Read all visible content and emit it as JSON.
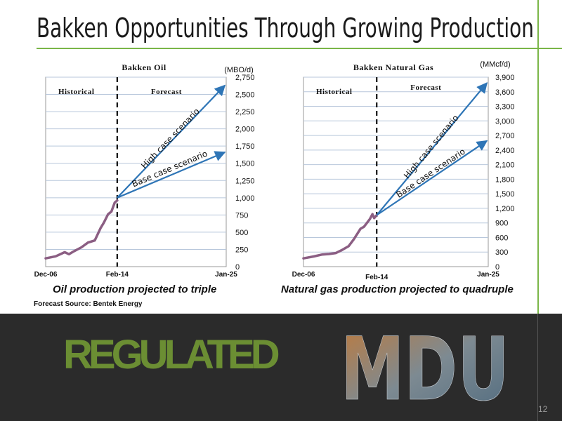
{
  "slide": {
    "title": "Bakken Opportunities Through Growing Production",
    "source": "Forecast Source: Bentek Energy",
    "page_number": "12",
    "segment_label": "REGULATED",
    "logo_text": "MDU",
    "accent_color": "#7ab648",
    "line_color": "#8b5e83",
    "arrow_color": "#2e75b6"
  },
  "chart_data": [
    {
      "type": "line",
      "title": "Bakken Oil",
      "unit": "(MBO/d)",
      "caption": "Oil production projected to triple",
      "region_labels": [
        "Historical",
        "Forecast"
      ],
      "x_ticks": [
        "Dec-06",
        "Feb-14",
        "Jan-25"
      ],
      "x_range": [
        "Dec-06",
        "Jan-25"
      ],
      "divider_x": "Feb-14",
      "ylim": [
        0,
        2750
      ],
      "y_ticks": [
        0,
        250,
        500,
        750,
        1000,
        1250,
        1500,
        1750,
        2000,
        2250,
        2500,
        2750
      ],
      "grid": true,
      "series": [
        {
          "values": [
            [
              "Dec-06",
              120
            ],
            [
              "Dec-07",
              150
            ],
            [
              "Nov-08",
              210
            ],
            [
              "Apr-09",
              180
            ],
            [
              "Nov-09",
              230
            ],
            [
              "Jul-10",
              280
            ],
            [
              "Mar-11",
              350
            ],
            [
              "Nov-11",
              380
            ],
            [
              "Jun-12",
              560
            ],
            [
              "Oct-12",
              640
            ],
            [
              "Mar-13",
              760
            ],
            [
              "Jul-13",
              800
            ],
            [
              "Nov-13",
              930
            ],
            [
              "Feb-14",
              960
            ]
          ]
        }
      ],
      "scenarios": [
        {
          "name": "High case scenario",
          "from": [
            "Feb-14",
            1000
          ],
          "to": [
            "Jan-25",
            2630
          ]
        },
        {
          "name": "Base case scenario",
          "from": [
            "Feb-14",
            1000
          ],
          "to": [
            "Jan-25",
            1660
          ]
        }
      ]
    },
    {
      "type": "line",
      "title": "Bakken Natural Gas",
      "unit": "(MMcf/d)",
      "caption": "Natural gas production projected to quadruple",
      "region_labels": [
        "Historical",
        "Forecast"
      ],
      "x_ticks": [
        "Dec-06",
        "Feb-14",
        "Jan-25"
      ],
      "x_range": [
        "Dec-06",
        "Jan-25"
      ],
      "divider_x": "Feb-14",
      "ylim": [
        0,
        3900
      ],
      "y_ticks": [
        0,
        300,
        600,
        900,
        1200,
        1500,
        1800,
        2100,
        2400,
        2700,
        3000,
        3300,
        3600,
        3900
      ],
      "grid": true,
      "series": [
        {
          "values": [
            [
              "Dec-06",
              170
            ],
            [
              "Dec-07",
              210
            ],
            [
              "Oct-08",
              250
            ],
            [
              "Jun-09",
              260
            ],
            [
              "Feb-10",
              280
            ],
            [
              "Sep-10",
              340
            ],
            [
              "May-11",
              420
            ],
            [
              "Nov-11",
              560
            ],
            [
              "Jul-12",
              780
            ],
            [
              "Nov-12",
              820
            ],
            [
              "Jun-13",
              980
            ],
            [
              "Sep-13",
              1080
            ],
            [
              "Nov-13",
              1000
            ],
            [
              "Feb-14",
              1060
            ]
          ]
        }
      ],
      "scenarios": [
        {
          "name": "High case scenario",
          "from": [
            "Feb-14",
            1060
          ],
          "to": [
            "Jan-25",
            3780
          ]
        },
        {
          "name": "Base case scenario",
          "from": [
            "Feb-14",
            1060
          ],
          "to": [
            "Jan-25",
            2590
          ]
        }
      ]
    }
  ]
}
